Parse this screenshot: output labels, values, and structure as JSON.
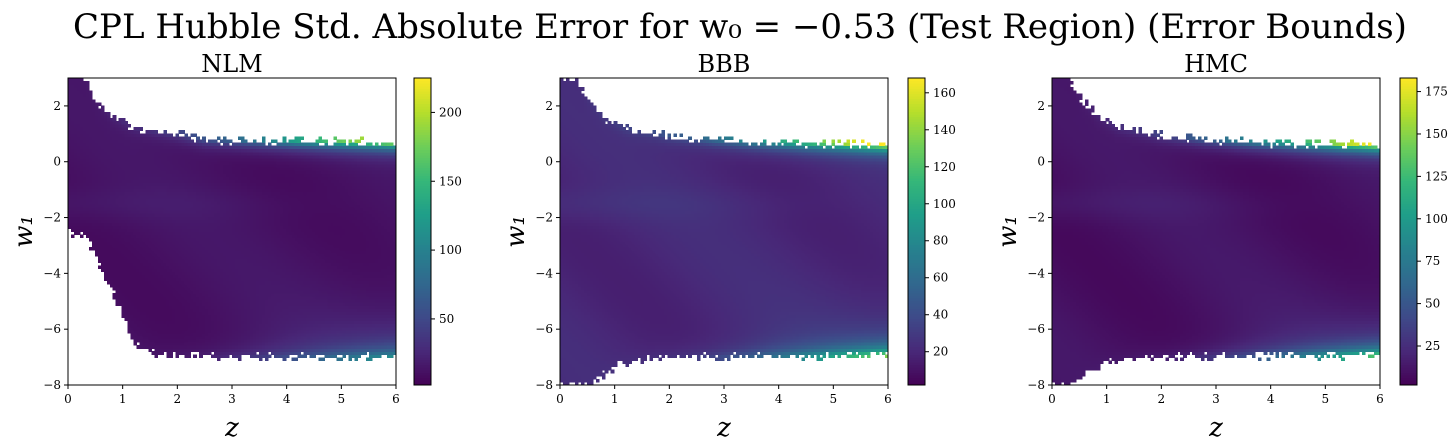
{
  "figure": {
    "title": "CPL Hubble Std. Absolute Error for w₀ = −0.53 (Test Region) (Error Bounds)"
  },
  "colors": {
    "viridis": [
      "#440154",
      "#482878",
      "#3e4a89",
      "#31688e",
      "#26828e",
      "#1f9e89",
      "#35b779",
      "#6ece58",
      "#b5de2b",
      "#fde725"
    ],
    "background": "#ffffff",
    "axis": "#000000"
  },
  "chart_data": [
    {
      "type": "heatmap",
      "title": "NLM",
      "xlabel": "z",
      "ylabel": "w₁",
      "xlim": [
        0,
        6
      ],
      "ylim": [
        -8,
        3
      ],
      "x_ticks": [
        0,
        1,
        2,
        3,
        4,
        5,
        6
      ],
      "y_ticks": [
        -8,
        -6,
        -4,
        -2,
        0,
        2
      ],
      "y_tick_labels": [
        "−8",
        "−6",
        "−4",
        "−2",
        "0",
        "2"
      ],
      "colorbar": {
        "min": 2,
        "max": 225,
        "ticks": [
          50,
          100,
          150,
          200
        ]
      },
      "region_upper_w1": [
        [
          0.0,
          3.0
        ],
        [
          0.3,
          3.0
        ],
        [
          0.5,
          2.2
        ],
        [
          0.8,
          1.6
        ],
        [
          1.2,
          1.25
        ],
        [
          2.0,
          1.0
        ],
        [
          2.5,
          0.8
        ],
        [
          3.5,
          0.75
        ],
        [
          6.0,
          0.7
        ]
      ],
      "region_lower_w1": [
        [
          0.0,
          -2.5
        ],
        [
          0.3,
          -2.6
        ],
        [
          0.6,
          -3.8
        ],
        [
          0.9,
          -5.0
        ],
        [
          1.2,
          -6.5
        ],
        [
          1.6,
          -6.9
        ],
        [
          3.0,
          -6.95
        ],
        [
          6.0,
          -7.0
        ]
      ],
      "error_features": {
        "base": 12,
        "top_edge_peak": 210,
        "bottom_edge_peak": 70,
        "far_z_growth": 40
      }
    },
    {
      "type": "heatmap",
      "title": "BBB",
      "xlabel": "z",
      "ylabel": "w₁",
      "xlim": [
        0,
        6
      ],
      "ylim": [
        -8,
        3
      ],
      "x_ticks": [
        0,
        1,
        2,
        3,
        4,
        5,
        6
      ],
      "y_ticks": [
        -8,
        -6,
        -4,
        -2,
        0,
        2
      ],
      "y_tick_labels": [
        "−8",
        "−6",
        "−4",
        "−2",
        "0",
        "2"
      ],
      "colorbar": {
        "min": 2,
        "max": 168,
        "ticks": [
          20,
          40,
          60,
          80,
          100,
          120,
          140,
          160
        ]
      },
      "region_upper_w1": [
        [
          0.0,
          3.0
        ],
        [
          0.3,
          3.0
        ],
        [
          0.5,
          2.2
        ],
        [
          0.8,
          1.6
        ],
        [
          1.2,
          1.2
        ],
        [
          2.0,
          0.95
        ],
        [
          2.8,
          0.8
        ],
        [
          3.5,
          0.72
        ],
        [
          6.0,
          0.62
        ]
      ],
      "region_lower_w1": [
        [
          0.0,
          -8.0
        ],
        [
          0.5,
          -8.0
        ],
        [
          0.8,
          -7.6
        ],
        [
          1.2,
          -7.2
        ],
        [
          1.8,
          -7.0
        ],
        [
          3.0,
          -6.95
        ],
        [
          6.0,
          -6.9
        ]
      ],
      "error_features": {
        "base": 20,
        "top_edge_peak": 160,
        "bottom_edge_peak": 90,
        "far_z_growth": 25
      }
    },
    {
      "type": "heatmap",
      "title": "HMC",
      "xlabel": "z",
      "ylabel": "w₁",
      "xlim": [
        0,
        6
      ],
      "ylim": [
        -8,
        3
      ],
      "x_ticks": [
        0,
        1,
        2,
        3,
        4,
        5,
        6
      ],
      "y_ticks": [
        -8,
        -6,
        -4,
        -2,
        0,
        2
      ],
      "y_tick_labels": [
        "−8",
        "−6",
        "−4",
        "−2",
        "0",
        "2"
      ],
      "colorbar": {
        "min": 2,
        "max": 183,
        "ticks": [
          25,
          50,
          75,
          100,
          125,
          150,
          175
        ]
      },
      "region_upper_w1": [
        [
          0.0,
          3.0
        ],
        [
          0.3,
          3.0
        ],
        [
          0.5,
          2.3
        ],
        [
          0.8,
          1.7
        ],
        [
          1.2,
          1.25
        ],
        [
          2.0,
          0.95
        ],
        [
          2.8,
          0.8
        ],
        [
          3.5,
          0.72
        ],
        [
          6.0,
          0.6
        ]
      ],
      "region_lower_w1": [
        [
          0.0,
          -8.0
        ],
        [
          0.3,
          -8.0
        ],
        [
          0.6,
          -7.6
        ],
        [
          1.0,
          -7.2
        ],
        [
          1.6,
          -7.0
        ],
        [
          3.0,
          -6.95
        ],
        [
          6.0,
          -6.9
        ]
      ],
      "error_features": {
        "base": 10,
        "top_edge_peak": 175,
        "bottom_edge_peak": 95,
        "far_z_growth": 30
      }
    }
  ]
}
